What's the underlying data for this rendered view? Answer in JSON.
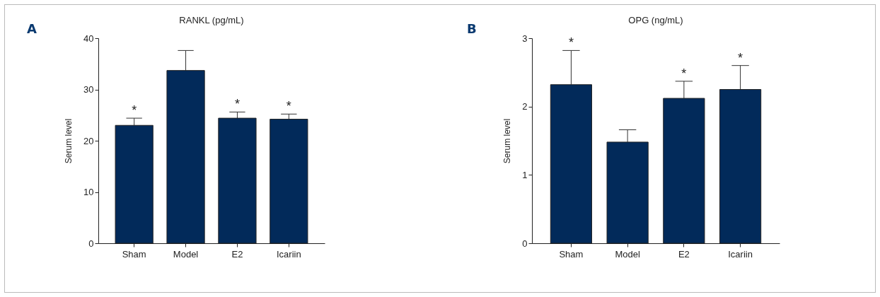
{
  "chart_data": [
    {
      "type": "bar",
      "title": "RANKL (pg/mL)",
      "ylabel": "Serum level",
      "categories": [
        "Sham",
        "Model",
        "E2",
        "Icariin"
      ],
      "values": [
        23.0,
        33.7,
        24.4,
        24.2
      ],
      "errors": [
        1.4,
        3.9,
        1.2,
        1.0
      ],
      "color": "#022a5a",
      "ylim": [
        0,
        40
      ],
      "yticks": [
        0,
        10,
        20,
        30,
        40
      ],
      "grid": false,
      "legend": false,
      "annotations": [
        "A",
        {
          "text": "*",
          "x": "Sham",
          "y": 24.4
        },
        {
          "text": "*",
          "x": "E2",
          "y": 25.6
        },
        {
          "text": "*",
          "x": "Icariin",
          "y": 25.2
        }
      ]
    },
    {
      "type": "bar",
      "title": "OPG (ng/mL)",
      "ylabel": "Serum level",
      "categories": [
        "Sham",
        "Model",
        "E2",
        "Icariin"
      ],
      "values": [
        2.32,
        1.48,
        2.12,
        2.25
      ],
      "errors": [
        0.5,
        0.18,
        0.25,
        0.35
      ],
      "color": "#022a5a",
      "ylim": [
        0,
        3
      ],
      "yticks": [
        0,
        1,
        2,
        3
      ],
      "grid": false,
      "legend": false,
      "annotations": [
        "B",
        {
          "text": "*",
          "x": "Sham",
          "y": 2.82
        },
        {
          "text": "*",
          "x": "E2",
          "y": 2.37
        },
        {
          "text": "*",
          "x": "Icariin",
          "y": 2.6
        }
      ]
    }
  ]
}
